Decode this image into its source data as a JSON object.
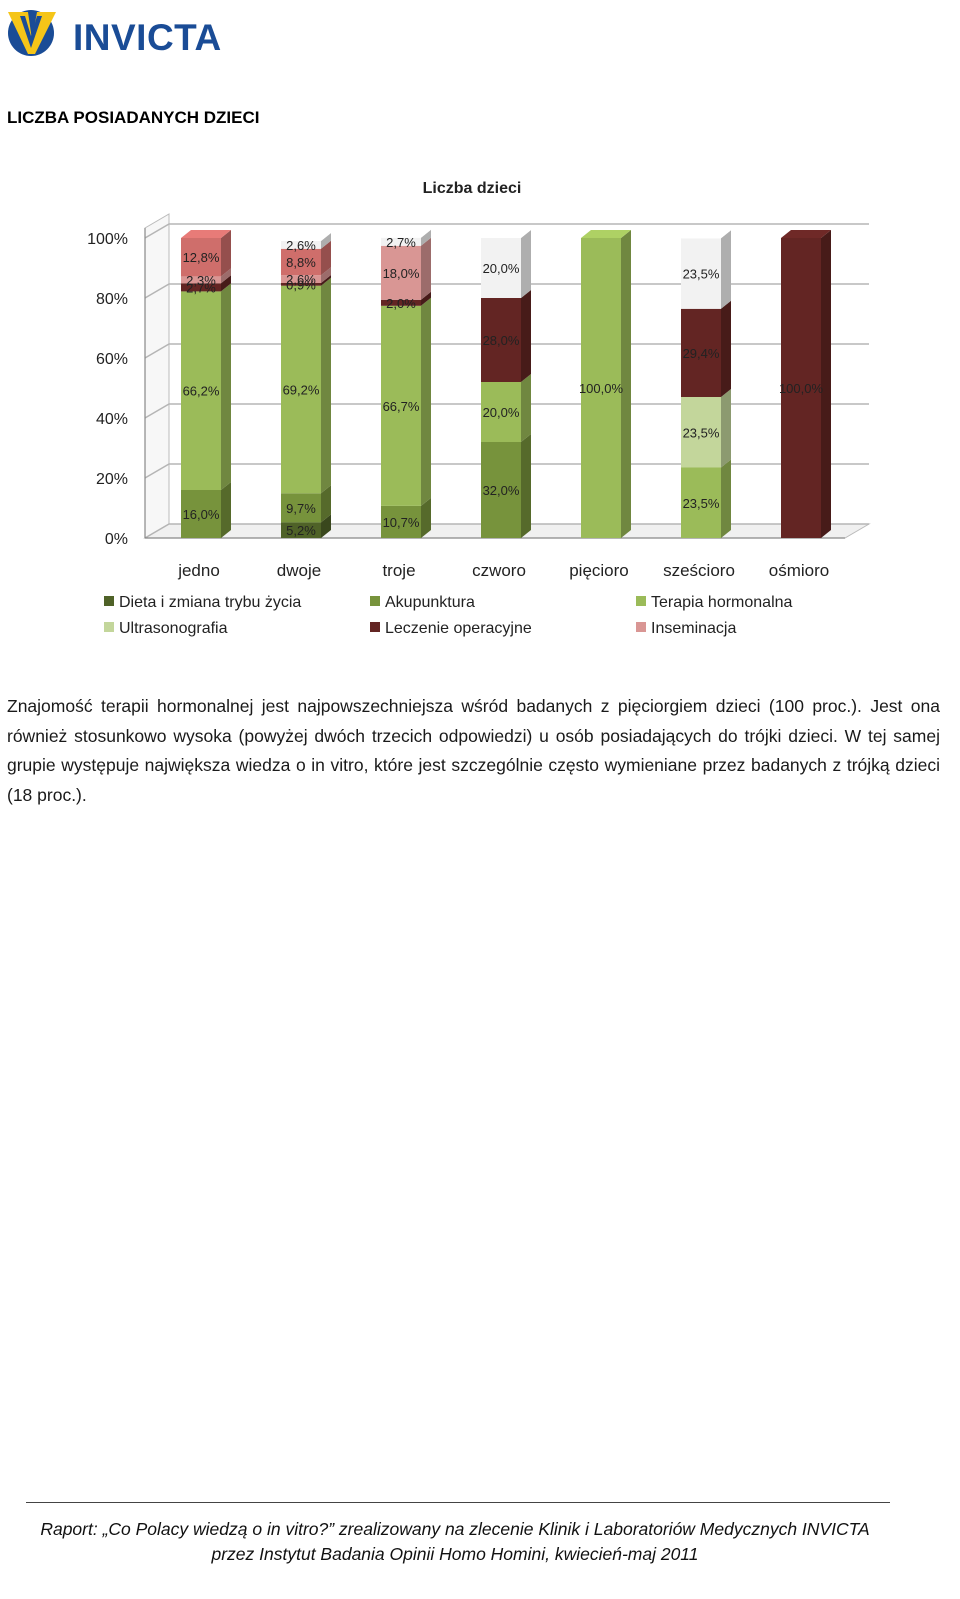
{
  "header": {
    "logo_text": "INVICTA"
  },
  "section_heading": "LICZBA POSIADANYCH DZIECI",
  "chart_data": {
    "type": "bar",
    "stacked": true,
    "title": "Liczba dzieci",
    "categories": [
      "jedno",
      "dwoje",
      "troje",
      "czworo",
      "pięcioro",
      "sześcioro",
      "ośmioro"
    ],
    "ylim": [
      0,
      100
    ],
    "yticks": [
      "0%",
      "20%",
      "40%",
      "60%",
      "80%",
      "100%"
    ],
    "grid": true,
    "legend_position": "bottom",
    "series": [
      {
        "name": "Dieta i zmiana trybu życia",
        "color": "#4f6228",
        "values": [
          0,
          5.2,
          0,
          0,
          0,
          0,
          0
        ],
        "labels": [
          "",
          "5,2%",
          "",
          "",
          "",
          "",
          ""
        ]
      },
      {
        "name": "Akupunktura",
        "color": "#77933c",
        "values": [
          16.0,
          9.7,
          10.7,
          32.0,
          0,
          0,
          0
        ],
        "labels": [
          "16,0%",
          "9,7%",
          "10,7%",
          "32,0%",
          "",
          "",
          ""
        ]
      },
      {
        "name": "Terapia hormonalna",
        "color": "#9bbb59",
        "values": [
          66.2,
          69.2,
          66.7,
          20.0,
          100.0,
          23.5,
          0
        ],
        "labels": [
          "66,2%",
          "69,2%",
          "66,7%",
          "20,0%",
          "100,0%",
          "23,5%",
          ""
        ]
      },
      {
        "name": "Ultrasonografia",
        "color": "#c3d69b",
        "values": [
          0,
          0,
          0,
          0,
          0,
          23.5,
          0
        ],
        "labels": [
          "",
          "",
          "",
          "",
          "",
          "23,5%",
          ""
        ]
      },
      {
        "name": "Leczenie operacyjne",
        "color": "#632523",
        "values": [
          2.7,
          0.9,
          2.0,
          28.0,
          0,
          29.4,
          100.0
        ],
        "labels": [
          "2,7%",
          "0,9%",
          "2,0%",
          "28,0%",
          "",
          "29,4%",
          "100,0%"
        ]
      },
      {
        "name": "Inseminacja",
        "color": "#d99694",
        "values": [
          2.3,
          2.6,
          18.0,
          0,
          0,
          0,
          0
        ],
        "labels": [
          "2,3%",
          "2,6%",
          "18,0%",
          "",
          "",
          "",
          ""
        ]
      },
      {
        "name": "",
        "color": "#cf6e6b",
        "values": [
          12.8,
          8.8,
          0,
          0,
          0,
          0,
          0
        ],
        "labels": [
          "12,8%",
          "8,8%",
          "",
          "",
          "",
          "",
          ""
        ]
      },
      {
        "name": "",
        "color": "#f2f2f2",
        "values": [
          0,
          2.6,
          2.7,
          20.0,
          0,
          23.5,
          0
        ],
        "labels": [
          "",
          "2,6%",
          "2,7%",
          "20,0%",
          "",
          "23,5%",
          ""
        ]
      }
    ]
  },
  "body_text": "Znajomość terapii hormonalnej jest najpowszechniejsza wśród badanych z pięciorgiem dzieci (100 proc.). Jest ona również stosunkowo wysoka (powyżej dwóch trzecich odpowiedzi) u osób posiadających do trójki dzieci. W tej samej grupie występuje największa wiedza o in vitro, które jest szczególnie często wymieniane przez badanych z trójką dzieci (18 proc.).",
  "footer": {
    "line1": "Raport: „Co Polacy wiedzą o in vitro?” zrealizowany na zlecenie Klinik i Laboratoriów Medycznych INVICTA",
    "line2": "przez Instytut Badania Opinii Homo Homini, kwiecień-maj 2011"
  }
}
